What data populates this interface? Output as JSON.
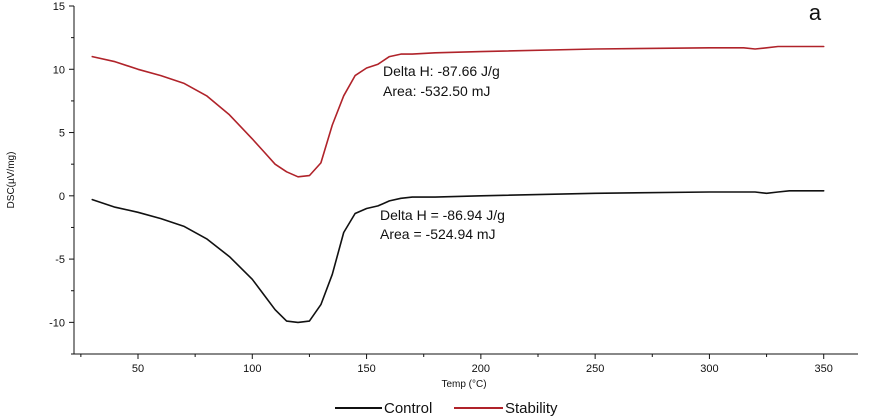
{
  "chart_data": {
    "type": "line",
    "title": "",
    "panel_label": "a",
    "xlabel": "Temp (°C)",
    "ylabel": "DSC(µV/mg)",
    "xlim": [
      22,
      365
    ],
    "ylim": [
      -12.5,
      15
    ],
    "xticks": [
      50,
      100,
      150,
      200,
      250,
      300,
      350
    ],
    "yticks": [
      -10,
      -5,
      0,
      5,
      10,
      15
    ],
    "grid": false,
    "legend_position": "bottom-center",
    "series": [
      {
        "name": "Control",
        "color": "#111111",
        "x": [
          30,
          40,
          50,
          60,
          70,
          80,
          90,
          100,
          105,
          110,
          115,
          120,
          125,
          130,
          135,
          140,
          145,
          150,
          155,
          160,
          165,
          170,
          180,
          200,
          250,
          300,
          320,
          325,
          330,
          335,
          340,
          350
        ],
        "y": [
          -0.3,
          -0.9,
          -1.3,
          -1.8,
          -2.4,
          -3.4,
          -4.8,
          -6.6,
          -7.8,
          -9.0,
          -9.9,
          -10.0,
          -9.9,
          -8.6,
          -6.2,
          -2.9,
          -1.4,
          -1.0,
          -0.8,
          -0.4,
          -0.2,
          -0.1,
          -0.1,
          0.0,
          0.2,
          0.3,
          0.3,
          0.2,
          0.3,
          0.4,
          0.4,
          0.4
        ]
      },
      {
        "name": "Stability",
        "color": "#b0232a",
        "x": [
          30,
          40,
          50,
          60,
          70,
          80,
          90,
          100,
          105,
          110,
          115,
          120,
          125,
          130,
          135,
          140,
          145,
          150,
          155,
          160,
          165,
          170,
          180,
          200,
          250,
          300,
          315,
          320,
          325,
          330,
          335,
          340,
          350
        ],
        "y": [
          11.0,
          10.6,
          10.0,
          9.5,
          8.9,
          7.9,
          6.4,
          4.5,
          3.5,
          2.5,
          1.9,
          1.5,
          1.6,
          2.6,
          5.6,
          7.9,
          9.5,
          10.1,
          10.4,
          11.0,
          11.2,
          11.2,
          11.3,
          11.4,
          11.6,
          11.7,
          11.7,
          11.6,
          11.7,
          11.8,
          11.8,
          11.8,
          11.8
        ]
      }
    ],
    "annotations": [
      {
        "series": "Stability",
        "lines": [
          "Delta H:  -87.66 J/g",
          "Area: -532.50 mJ"
        ]
      },
      {
        "series": "Control",
        "lines": [
          "Delta H = -86.94 J/g",
          "Area = -524.94 mJ"
        ]
      }
    ]
  }
}
